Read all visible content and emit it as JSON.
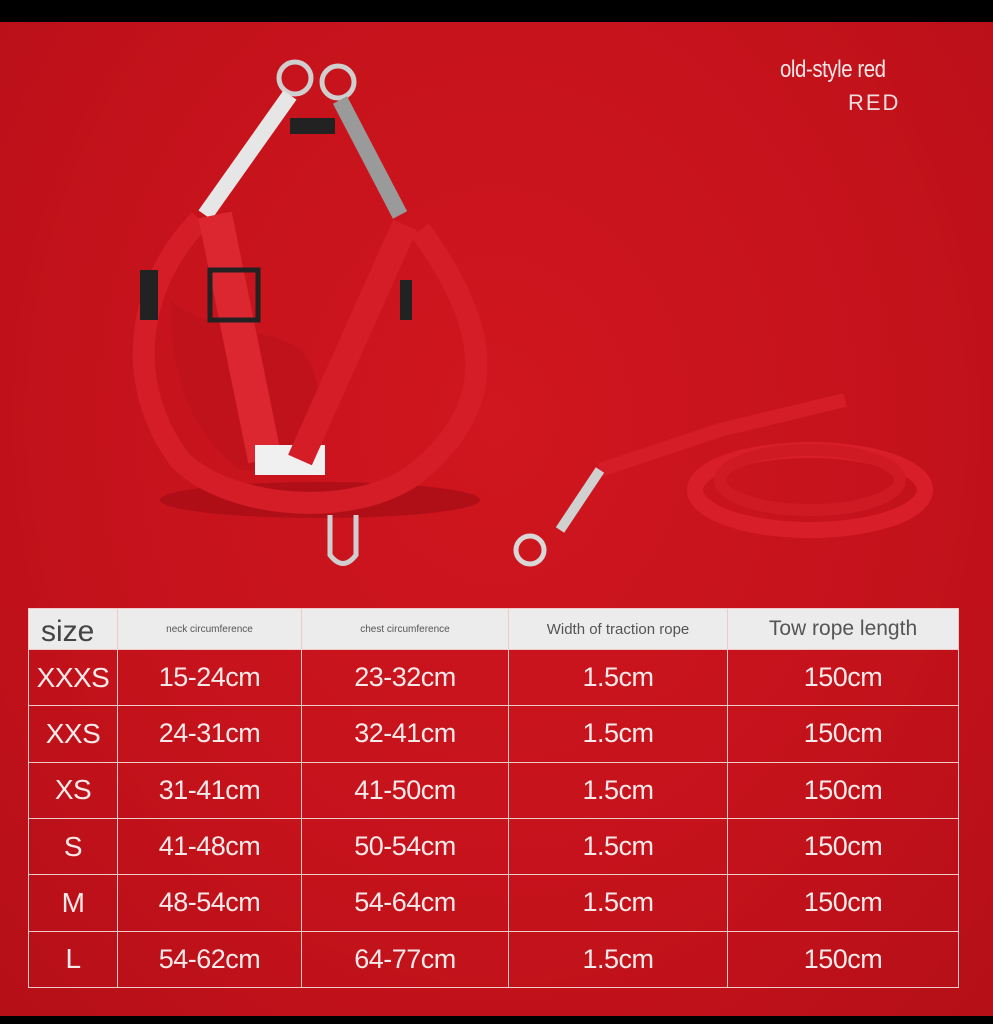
{
  "product_labels": {
    "color_name": "old-style red",
    "color_code": "RED"
  },
  "colors": {
    "background": "#c4121b",
    "header_row": "#ececec",
    "border": "#f1c9c9"
  },
  "table": {
    "headers": [
      "size",
      "neck circumference",
      "chest circumference",
      "Width of traction rope",
      "Tow rope length"
    ],
    "rows": [
      [
        "XXXS",
        "15-24cm",
        "23-32cm",
        "1.5cm",
        "150cm"
      ],
      [
        "XXS",
        "24-31cm",
        "32-41cm",
        "1.5cm",
        "150cm"
      ],
      [
        "XS",
        "31-41cm",
        "41-50cm",
        "1.5cm",
        "150cm"
      ],
      [
        "S",
        "41-48cm",
        "50-54cm",
        "1.5cm",
        "150cm"
      ],
      [
        "M",
        "48-54cm",
        "54-64cm",
        "1.5cm",
        "150cm"
      ],
      [
        "L",
        "54-62cm",
        "64-77cm",
        "1.5cm",
        "150cm"
      ]
    ]
  }
}
